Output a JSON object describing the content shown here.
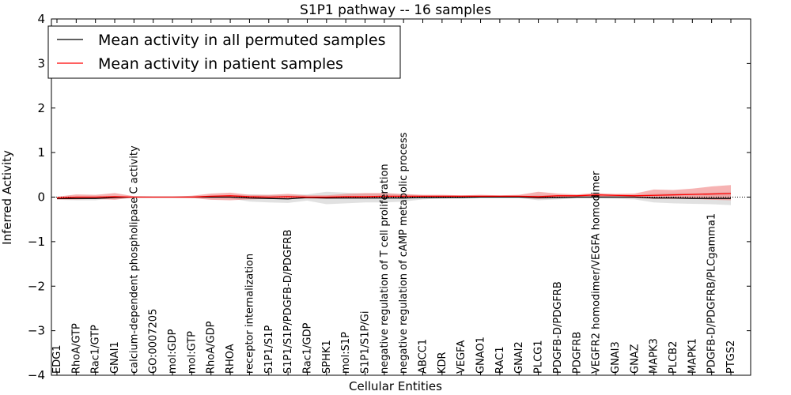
{
  "chart_data": {
    "type": "line",
    "title": "S1P1 pathway -- 16 samples",
    "xlabel": "Cellular Entities",
    "ylabel": "Inferred Activity",
    "ylim": [
      -4,
      4
    ],
    "yticks": [
      -4,
      -3,
      -2,
      -1,
      0,
      1,
      2,
      3,
      4
    ],
    "ytick_labels": [
      "−4",
      "−3",
      "−2",
      "−1",
      "0",
      "1",
      "2",
      "3",
      "4"
    ],
    "legend_position": "top-left",
    "categories": [
      "EDG1",
      "RhoA/GTP",
      "Rac1/GTP",
      "GNAI1",
      "calcium-dependent phospholipase C activity",
      "GO:0007205",
      "mol:GDP",
      "mol:GTP",
      "RhoA/GDP",
      "RHOA",
      "receptor internalization",
      "S1P1/S1P",
      "S1P1/S1P/PDGFB-D/PDGFRB",
      "Rac1/GDP",
      "SPHK1",
      "mol:S1P",
      "S1P1/S1P/Gi",
      "negative regulation of T cell proliferation",
      "negative regulation of cAMP metabolic process",
      "ABCC1",
      "KDR",
      "VEGFA",
      "GNAO1",
      "RAC1",
      "GNAI2",
      "PLCG1",
      "PDGFB-D/PDGFRB",
      "PDGFRB",
      "VEGFR2 homodimer/VEGFA homodimer",
      "GNAI3",
      "GNAZ",
      "MAPK3",
      "PLCB2",
      "MAPK1",
      "PDGFB-D/PDGFRB/PLCgamma1",
      "PTGS2"
    ],
    "series": [
      {
        "name": "Mean activity in all permuted samples",
        "color": "#000000",
        "band_color": "#bdbdbd",
        "values": [
          -0.03,
          -0.03,
          -0.03,
          -0.01,
          0.0,
          0.0,
          0.0,
          0.0,
          0.0,
          0.0,
          -0.02,
          -0.03,
          -0.04,
          -0.01,
          -0.02,
          -0.02,
          -0.02,
          -0.02,
          -0.02,
          -0.01,
          -0.01,
          -0.01,
          0.0,
          0.0,
          0.0,
          -0.01,
          -0.01,
          0.0,
          0.0,
          0.0,
          0.0,
          -0.02,
          -0.02,
          -0.03,
          -0.03,
          -0.03
        ],
        "band_low": [
          -0.06,
          -0.07,
          -0.07,
          -0.03,
          -0.01,
          -0.01,
          -0.01,
          -0.01,
          -0.02,
          -0.03,
          -0.1,
          -0.12,
          -0.13,
          -0.08,
          -0.16,
          -0.14,
          -0.12,
          -0.12,
          -0.1,
          -0.05,
          -0.03,
          -0.02,
          -0.02,
          -0.02,
          -0.02,
          -0.07,
          -0.05,
          -0.03,
          -0.03,
          -0.04,
          -0.05,
          -0.12,
          -0.14,
          -0.15,
          -0.16,
          -0.18
        ],
        "band_high": [
          0.0,
          0.01,
          0.01,
          0.01,
          0.01,
          0.01,
          0.01,
          0.01,
          0.02,
          0.03,
          0.06,
          0.05,
          0.05,
          0.06,
          0.12,
          0.1,
          0.08,
          0.08,
          0.06,
          0.03,
          0.01,
          0.01,
          0.02,
          0.02,
          0.02,
          0.05,
          0.03,
          0.03,
          0.03,
          0.04,
          0.05,
          0.08,
          0.1,
          0.09,
          0.1,
          0.12
        ]
      },
      {
        "name": "Mean activity in patient samples",
        "color": "#ff0000",
        "band_color": "#f08080",
        "values": [
          -0.02,
          0.0,
          0.0,
          0.01,
          0.0,
          0.0,
          0.0,
          0.0,
          0.02,
          0.03,
          0.01,
          0.0,
          0.01,
          0.0,
          0.0,
          0.01,
          0.01,
          0.02,
          0.02,
          0.02,
          0.02,
          0.02,
          0.02,
          0.02,
          0.02,
          0.01,
          0.03,
          0.03,
          0.05,
          0.04,
          0.03,
          0.04,
          0.05,
          0.06,
          0.07,
          0.08
        ],
        "band_low": [
          -0.05,
          -0.05,
          -0.04,
          -0.06,
          -0.01,
          -0.01,
          -0.01,
          -0.02,
          -0.06,
          -0.07,
          -0.05,
          -0.04,
          -0.03,
          -0.03,
          -0.04,
          -0.03,
          -0.03,
          -0.02,
          -0.02,
          -0.01,
          -0.01,
          -0.01,
          -0.01,
          -0.01,
          -0.01,
          -0.04,
          -0.02,
          -0.01,
          -0.01,
          -0.01,
          -0.02,
          -0.04,
          -0.04,
          -0.04,
          -0.06,
          -0.07
        ],
        "band_high": [
          0.01,
          0.06,
          0.05,
          0.09,
          0.02,
          0.01,
          0.01,
          0.03,
          0.08,
          0.1,
          0.05,
          0.05,
          0.07,
          0.04,
          0.04,
          0.07,
          0.09,
          0.09,
          0.07,
          0.05,
          0.05,
          0.04,
          0.05,
          0.04,
          0.05,
          0.12,
          0.08,
          0.06,
          0.09,
          0.07,
          0.08,
          0.17,
          0.16,
          0.19,
          0.24,
          0.27
        ]
      }
    ]
  }
}
